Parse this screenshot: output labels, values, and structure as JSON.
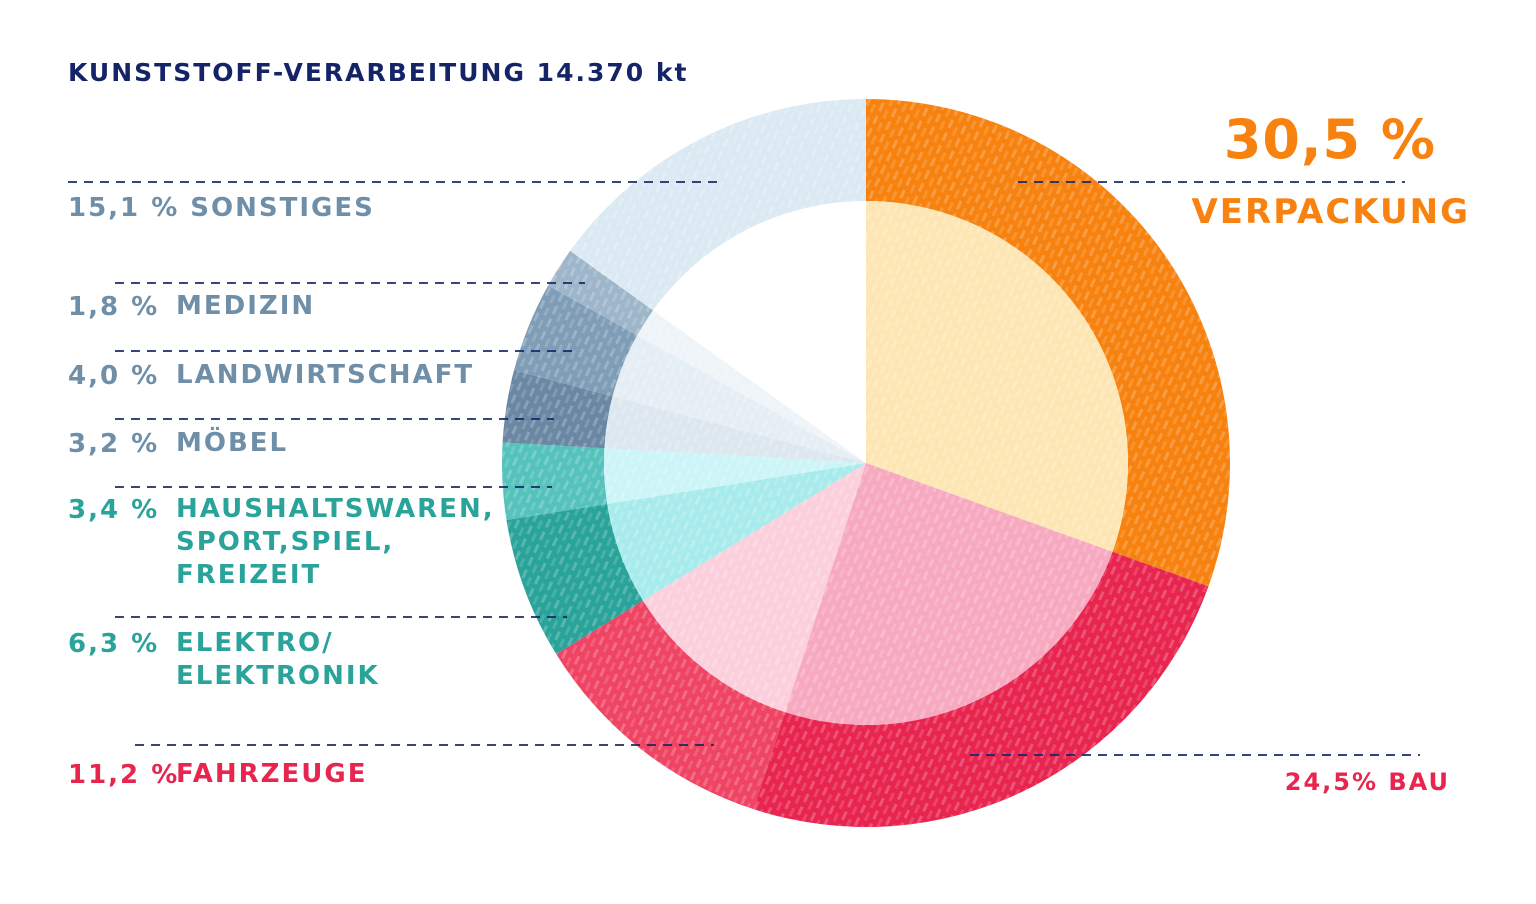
{
  "title": "KUNSTSTOFF-VERARBEITUNG 14.370 kt",
  "colors": {
    "title": "#142466",
    "verpackung": "#f7820f",
    "bau": "#e8254f",
    "fahrzeuge": "#e8254f",
    "teal": "#2aa39a",
    "slate": "#6f8ea8",
    "leader": "#142466"
  },
  "labels": {
    "verpackung_pct": "30,5 %",
    "verpackung_name": "VERPACKUNG",
    "bau": "24,5% BAU",
    "fahrzeuge_pct": "11,2 %",
    "fahrzeuge_name": "FAHRZEUGE",
    "elektro_pct": "6,3 %",
    "elektro_name": "ELEKTRO/\nELEKTRONIK",
    "haushalt_pct": "3,4 %",
    "haushalt_name": "HAUSHALTSWAREN,\nSPORT,SPIEL,\nFREIZEIT",
    "moebel_pct": "3,2 %",
    "moebel_name": "MÖBEL",
    "landwirtschaft_pct": "4,0 %",
    "landwirtschaft_name": "LANDWIRTSCHAFT",
    "medizin_pct": "1,8 %",
    "medizin_name": "MEDIZIN",
    "sonstiges": "15,1 % SONSTIGES"
  },
  "chart_data": {
    "type": "pie",
    "title": "KUNSTSTOFF-VERARBEITUNG 14.370 kt",
    "total": "14.370 kt",
    "slices": [
      {
        "name": "VERPACKUNG",
        "value": 30.5,
        "color": "#f7820f",
        "inner": "#fde6b3"
      },
      {
        "name": "BAU",
        "value": 24.5,
        "color": "#e8254f",
        "inner": "#f7a9c0"
      },
      {
        "name": "FAHRZEUGE",
        "value": 11.2,
        "color": "#ef4463",
        "inner": "#fbd0dc"
      },
      {
        "name": "ELEKTRO/ELEKTRONIK",
        "value": 6.3,
        "color": "#2aa39a",
        "inner": "#a8ebec"
      },
      {
        "name": "HAUSHALTSWAREN, SPORT,SPIEL, FREIZEIT",
        "value": 3.4,
        "color": "#55c2bc",
        "inner": "#ccf5f7"
      },
      {
        "name": "MÖBEL",
        "value": 3.2,
        "color": "#6a88a3",
        "inner": "#dde7ef"
      },
      {
        "name": "LANDWIRTSCHAFT",
        "value": 4.0,
        "color": "#7f9db7",
        "inner": "#e6eef5"
      },
      {
        "name": "MEDIZIN",
        "value": 1.8,
        "color": "#9db6ca",
        "inner": "#eef4f8"
      },
      {
        "name": "SONSTIGES",
        "value": 15.1,
        "color": "#dbe9f3",
        "inner": "#ffffff"
      }
    ]
  }
}
